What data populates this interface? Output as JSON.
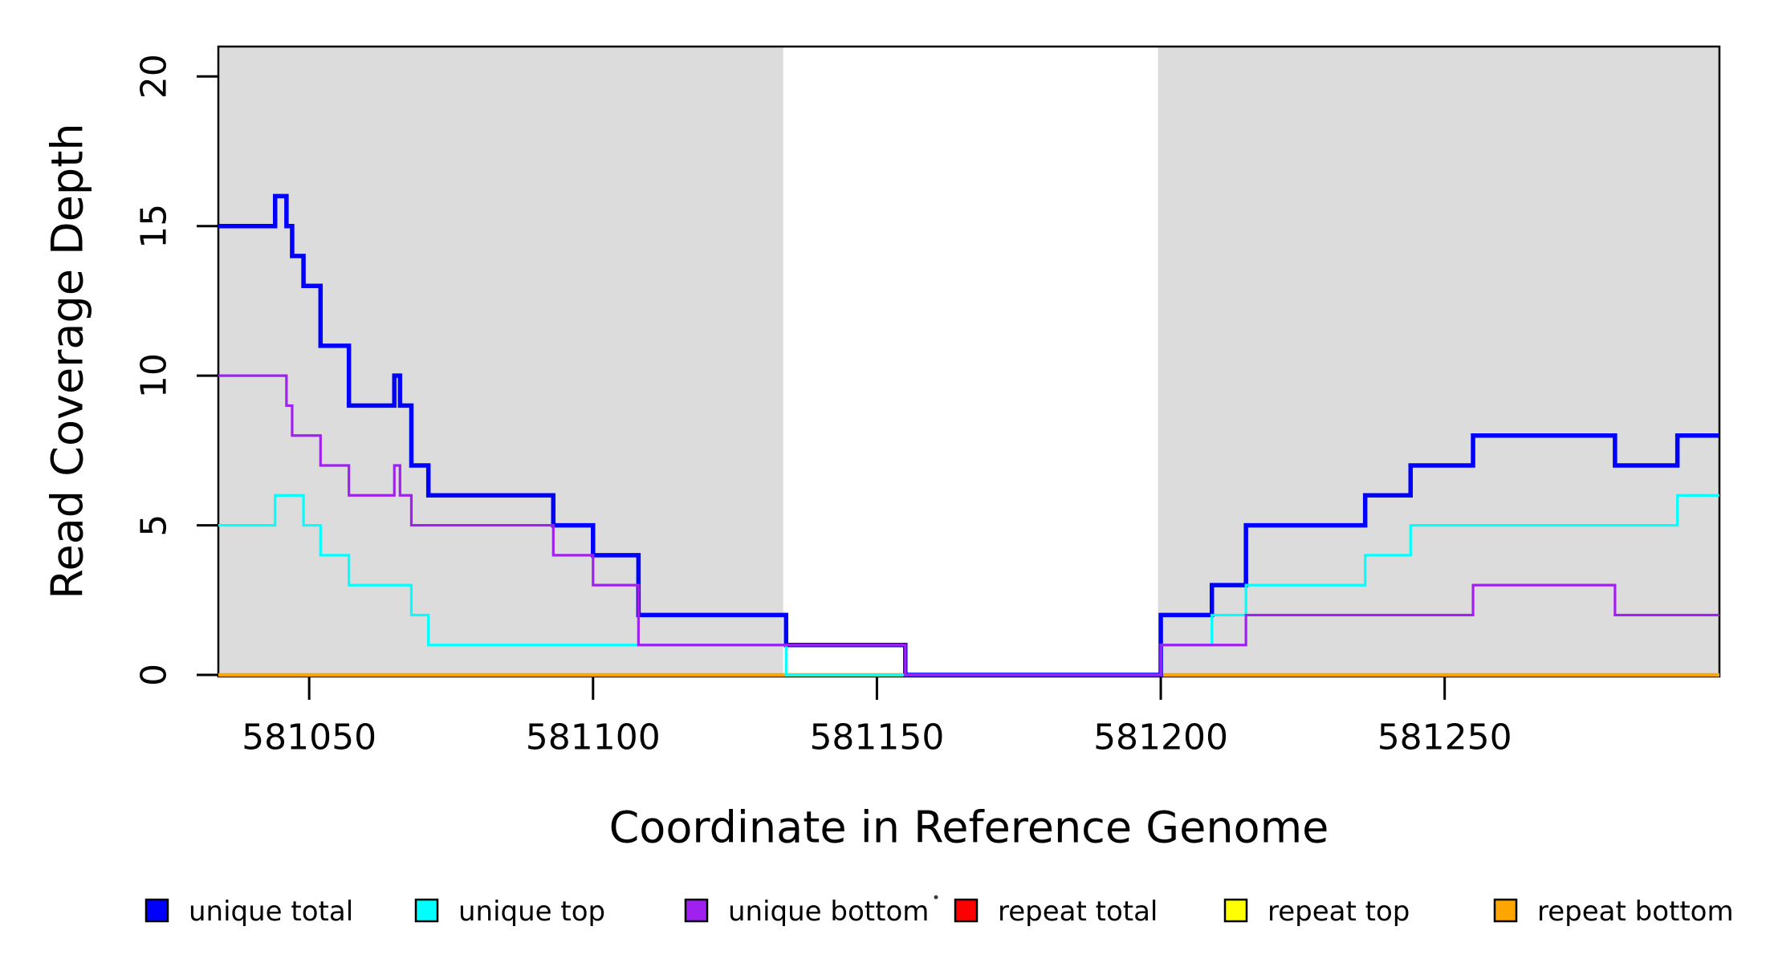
{
  "figure": {
    "background": "#FFFFFF",
    "stray_dot_char": "·"
  },
  "chart_data": {
    "type": "line",
    "subtype": "step",
    "title": "",
    "xlabel": "Coordinate in Reference Genome",
    "ylabel": "Read Coverage Depth",
    "xlim": [
      581034,
      581298.4
    ],
    "ylim": [
      0,
      21
    ],
    "x_ticks": [
      581050,
      581100,
      581150,
      581200,
      581250
    ],
    "y_ticks": [
      0,
      5,
      10,
      15,
      20
    ],
    "grid": false,
    "legend_position": "bottom",
    "band_color": "#DCDCDC",
    "axis_color": "#000000",
    "bands": [
      {
        "name": "left-gray-band",
        "from": 581034,
        "to": 581133.5
      },
      {
        "name": "right-gray-band",
        "from": 581199.5,
        "to": 581298.4
      }
    ],
    "series": [
      {
        "name": "repeat total",
        "color": "#FF0000",
        "width": 4,
        "points": [
          [
            581034,
            0
          ]
        ]
      },
      {
        "name": "repeat top",
        "color": "#FFFF00",
        "width": 4,
        "points": [
          [
            581034,
            0
          ]
        ]
      },
      {
        "name": "repeat bottom",
        "color": "#FFA500",
        "width": 4.5,
        "points": [
          [
            581034,
            0
          ]
        ]
      },
      {
        "name": "unique total",
        "color": "#0000FF",
        "width": 5.5,
        "points": [
          [
            581034,
            15
          ],
          [
            581044,
            16
          ],
          [
            581046,
            15
          ],
          [
            581047,
            14
          ],
          [
            581049,
            13
          ],
          [
            581052,
            11
          ],
          [
            581057,
            9
          ],
          [
            581065,
            10
          ],
          [
            581066,
            9
          ],
          [
            581068,
            7
          ],
          [
            581071,
            6
          ],
          [
            581093,
            5
          ],
          [
            581100,
            4
          ],
          [
            581108,
            2
          ],
          [
            581134,
            1
          ],
          [
            581155,
            0
          ],
          [
            581200,
            2
          ],
          [
            581209,
            3
          ],
          [
            581215,
            5
          ],
          [
            581236,
            6
          ],
          [
            581244,
            7
          ],
          [
            581255,
            8
          ],
          [
            581280,
            7
          ],
          [
            581291,
            8
          ]
        ]
      },
      {
        "name": "unique top",
        "color": "#00FFFF",
        "width": 3.2,
        "points": [
          [
            581034,
            5
          ],
          [
            581044,
            6
          ],
          [
            581049,
            5
          ],
          [
            581052,
            4
          ],
          [
            581057,
            3
          ],
          [
            581068,
            2
          ],
          [
            581071,
            1
          ],
          [
            581134,
            0
          ],
          [
            581200,
            1
          ],
          [
            581209,
            2
          ],
          [
            581215,
            3
          ],
          [
            581236,
            4
          ],
          [
            581244,
            5
          ],
          [
            581291,
            6
          ]
        ]
      },
      {
        "name": "unique bottom",
        "color": "#A020F0",
        "width": 3.2,
        "points": [
          [
            581034,
            10
          ],
          [
            581046,
            9
          ],
          [
            581047,
            8
          ],
          [
            581052,
            7
          ],
          [
            581057,
            6
          ],
          [
            581065,
            7
          ],
          [
            581066,
            6
          ],
          [
            581068,
            5
          ],
          [
            581093,
            4
          ],
          [
            581100,
            3
          ],
          [
            581108,
            1
          ],
          [
            581155,
            0
          ],
          [
            581200,
            1
          ],
          [
            581215,
            2
          ],
          [
            581255,
            3
          ],
          [
            581280,
            2
          ]
        ]
      }
    ],
    "legend": [
      {
        "label": "unique total",
        "color": "#0000FF"
      },
      {
        "label": "unique top",
        "color": "#00FFFF"
      },
      {
        "label": "unique bottom",
        "color": "#A020F0"
      },
      {
        "label": "repeat total",
        "color": "#FF0000"
      },
      {
        "label": "repeat top",
        "color": "#FFFF00"
      },
      {
        "label": "repeat bottom",
        "color": "#FFA500"
      }
    ]
  }
}
